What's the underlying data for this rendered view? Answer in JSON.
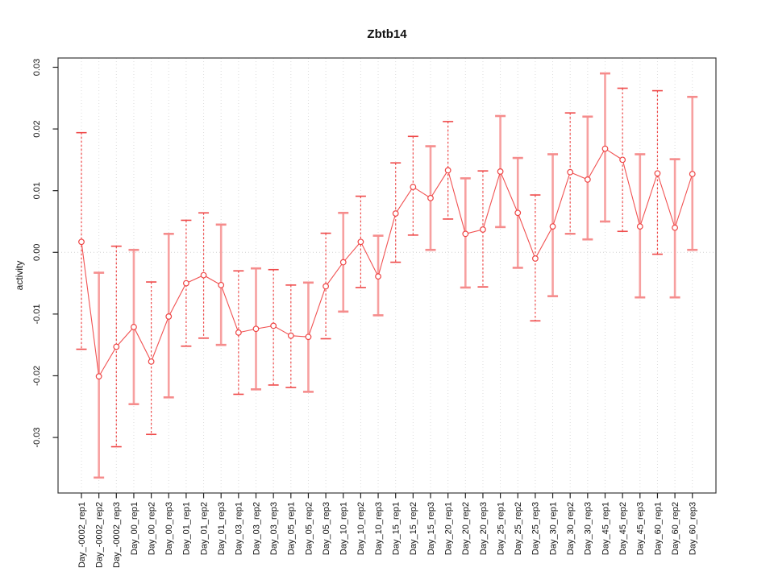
{
  "chart_data": {
    "type": "line",
    "subtype": "points-with-error-bars",
    "title": "Zbtb14",
    "xlabel": "",
    "ylabel": "activity",
    "legend": "none",
    "grid": "dotted vertical line per category; dotted horizontal line at y=0",
    "ylim": [
      -0.039,
      0.0315
    ],
    "yticks": {
      "values": [
        -0.03,
        -0.02,
        -0.01,
        0,
        0.01,
        0.02,
        0.03
      ],
      "labels": [
        "-0.03",
        "-0.02",
        "-0.01",
        "0.00",
        "0.01",
        "0.02",
        "0.03"
      ]
    },
    "categories": [
      "Day_-0002_rep1",
      "Day_-0002_rep2",
      "Day_-0002_rep3",
      "Day_00_rep1",
      "Day_00_rep2",
      "Day_00_rep3",
      "Day_01_rep1",
      "Day_01_rep2",
      "Day_01_rep3",
      "Day_03_rep1",
      "Day_03_rep2",
      "Day_03_rep3",
      "Day_05_rep1",
      "Day_05_rep2",
      "Day_05_rep3",
      "Day_10_rep1",
      "Day_10_rep2",
      "Day_10_rep3",
      "Day_15_rep1",
      "Day_15_rep2",
      "Day_15_rep3",
      "Day_20_rep1",
      "Day_20_rep2",
      "Day_20_rep3",
      "Day_25_rep1",
      "Day_25_rep2",
      "Day_25_rep3",
      "Day_30_rep1",
      "Day_30_rep2",
      "Day_30_rep3",
      "Day_45_rep1",
      "Day_45_rep2",
      "Day_45_rep3",
      "Day_60_rep1",
      "Day_60_rep2",
      "Day_60_rep3"
    ],
    "series": [
      {
        "name": "activity",
        "values": [
          0.0017,
          -0.0201,
          -0.0153,
          -0.0121,
          -0.0177,
          -0.0104,
          -0.005,
          -0.0037,
          -0.0053,
          -0.013,
          -0.0124,
          -0.0119,
          -0.0135,
          -0.0137,
          -0.0055,
          -0.0016,
          0.0017,
          -0.0039,
          0.0063,
          0.0106,
          0.0088,
          0.0133,
          0.003,
          0.0037,
          0.0131,
          0.0064,
          -0.001,
          0.0042,
          0.013,
          0.0118,
          0.0168,
          0.015,
          0.0042,
          0.0128,
          0.004,
          0.0127
        ],
        "err_high": [
          0.0194,
          -0.0033,
          0.001,
          0.0004,
          -0.0048,
          0.003,
          0.0052,
          0.0064,
          0.0045,
          -0.003,
          -0.0026,
          -0.0028,
          -0.0053,
          -0.0049,
          0.0031,
          0.0064,
          0.0091,
          0.0027,
          0.0145,
          0.0188,
          0.0172,
          0.0212,
          0.012,
          0.0132,
          0.0221,
          0.0153,
          0.0093,
          0.0159,
          0.0226,
          0.022,
          0.029,
          0.0266,
          0.0159,
          0.0262,
          0.0151,
          0.0252
        ],
        "err_low": [
          -0.0157,
          -0.0365,
          -0.0315,
          -0.0246,
          -0.0295,
          -0.0235,
          -0.0152,
          -0.0139,
          -0.015,
          -0.023,
          -0.0222,
          -0.0215,
          -0.0219,
          -0.0226,
          -0.014,
          -0.0096,
          -0.0057,
          -0.0102,
          -0.0016,
          0.0028,
          0.0004,
          0.0054,
          -0.0057,
          -0.0056,
          0.0041,
          -0.0025,
          -0.0111,
          -0.0071,
          0.003,
          0.0021,
          0.005,
          0.0034,
          -0.0073,
          -0.0003,
          -0.0073,
          0.0004
        ]
      }
    ],
    "point_styles": [
      "dashed",
      "solid",
      "dashed",
      "solid",
      "dashed",
      "solid",
      "dashed",
      "dashed",
      "solid",
      "dashed",
      "solid",
      "dashed",
      "dashed",
      "solid",
      "dashed",
      "solid",
      "dashed",
      "solid",
      "dashed",
      "dashed",
      "solid",
      "dashed",
      "solid",
      "dashed",
      "solid",
      "solid",
      "dashed",
      "solid",
      "dashed",
      "solid",
      "solid",
      "dashed",
      "solid",
      "dashed",
      "solid",
      "solid"
    ],
    "marker": "open-circle",
    "colors": {
      "bar_dark": "#ef4a4a",
      "bar_light": "#f7a0a0",
      "cap_light": "#f58c8c",
      "series_line": "#f15252",
      "marker_stroke": "#ee4545",
      "gridline": "#dcdcdc",
      "zero_line": "#d0d0d0",
      "plot_border": "#383838",
      "tick": "#222222",
      "text": "#111111",
      "background": "#ffffff"
    }
  }
}
